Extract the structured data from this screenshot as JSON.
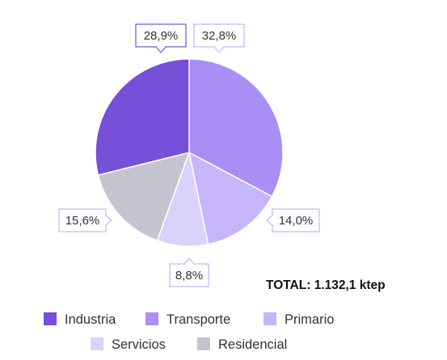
{
  "chart_data": {
    "type": "pie",
    "title": "",
    "total_label": "TOTAL: 1.132,1 ktep",
    "slices": [
      {
        "name": "Industria",
        "value": 28.9,
        "label": "28,9%",
        "color": "#7650d8"
      },
      {
        "name": "Transporte",
        "value": 32.8,
        "label": "32,8%",
        "color": "#a98ef6"
      },
      {
        "name": "Primario",
        "value": 14.0,
        "label": "14,0%",
        "color": "#c5b5f9"
      },
      {
        "name": "Servicios",
        "value": 8.8,
        "label": "8,8%",
        "color": "#dad2fa"
      },
      {
        "name": "Residencial",
        "value": 15.6,
        "label": "15,6%",
        "color": "#c6c3d0"
      }
    ],
    "legend": {
      "placement": "bottom",
      "items": [
        "Industria",
        "Transporte",
        "Primario",
        "Servicios",
        "Residencial"
      ]
    },
    "callout_border_color": "#7650d8",
    "callout_border_color_light": "#c5b5f9"
  }
}
